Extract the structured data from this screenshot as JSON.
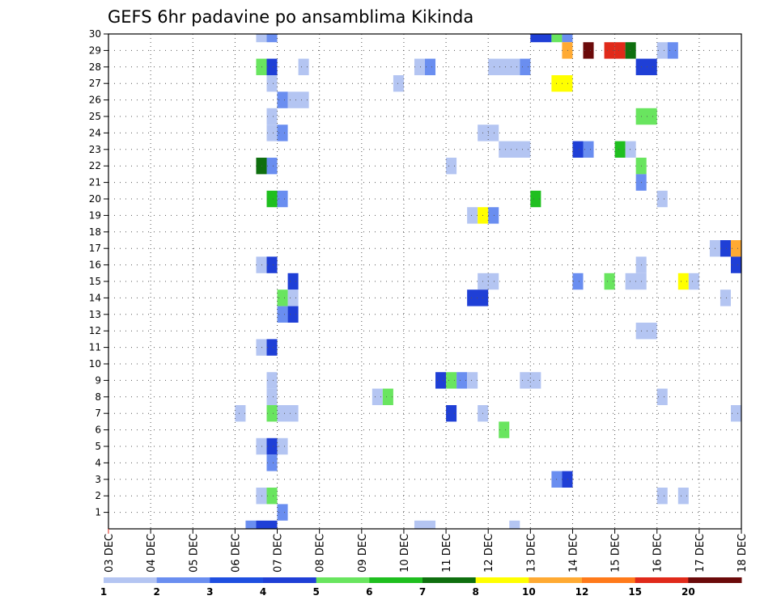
{
  "chart_data": {
    "type": "heatmap",
    "title": "GEFS 6hr padavine po ansamblima Kikinda",
    "x_tick_labels": [
      "03 DEC",
      "04 DEC",
      "05 DEC",
      "06 DEC",
      "07 DEC",
      "08 DEC",
      "09 DEC",
      "10 DEC",
      "11 DEC",
      "12 DEC",
      "13 DEC",
      "14 DEC",
      "15 DEC",
      "16 DEC",
      "17 DEC",
      "18 DEC"
    ],
    "y_tick_labels": [
      "1",
      "2",
      "3",
      "4",
      "5",
      "6",
      "7",
      "8",
      "9",
      "10",
      "11",
      "12",
      "13",
      "14",
      "15",
      "16",
      "17",
      "18",
      "19",
      "20",
      "21",
      "22",
      "23",
      "24",
      "25",
      "26",
      "27",
      "28",
      "29",
      "30"
    ],
    "x_unit": "day",
    "x_range": [
      0,
      15
    ],
    "y_range": [
      0,
      30
    ],
    "time_step_hours": 6,
    "grid": true,
    "legend": {
      "placement": "bottom",
      "levels": [
        "1",
        "2",
        "3",
        "4",
        "5",
        "6",
        "7",
        "8",
        "10",
        "12",
        "15",
        "20"
      ],
      "colors": [
        "#b4c5f2",
        "#6a8ef0",
        "#1f4fe0",
        "#1f3fd6",
        "#69e55f",
        "#1fbf1f",
        "#0f6f0f",
        "#ffff00",
        "#ffaa33",
        "#ff7a1a",
        "#e02a1a",
        "#6b0a0a"
      ]
    },
    "cell_colors": {
      "c1": "#b4c5f2",
      "c2": "#6a8ef0",
      "c3": "#1f4fe0",
      "c4": "#1f3fd6",
      "c5": "#69e55f",
      "c6": "#1fbf1f",
      "c7": "#0f6f0f",
      "c8": "#ffff00",
      "c10": "#ffaa33",
      "c15": "#e02a1a",
      "c20": "#6b0a0a"
    },
    "cells": [
      {
        "member": 30,
        "start_day": 3.5,
        "days": 0.25,
        "cls": "c1"
      },
      {
        "member": 30,
        "start_day": 3.75,
        "days": 0.25,
        "cls": "c2"
      },
      {
        "member": 30,
        "start_day": 10,
        "days": 0.5,
        "cls": "c4"
      },
      {
        "member": 30,
        "start_day": 10.5,
        "days": 0.25,
        "cls": "c5"
      },
      {
        "member": 30,
        "start_day": 10.75,
        "days": 0.25,
        "cls": "c2"
      },
      {
        "member": 29,
        "start_day": 10.75,
        "days": 0.25,
        "cls": "c10"
      },
      {
        "member": 29,
        "start_day": 11.25,
        "days": 0.25,
        "cls": "c20"
      },
      {
        "member": 29,
        "start_day": 11.75,
        "days": 0.25,
        "cls": "c15"
      },
      {
        "member": 29,
        "start_day": 12,
        "days": 0.25,
        "cls": "c15"
      },
      {
        "member": 29,
        "start_day": 12.25,
        "days": 0.25,
        "cls": "c7"
      },
      {
        "member": 29,
        "start_day": 13,
        "days": 0.25,
        "cls": "c1"
      },
      {
        "member": 29,
        "start_day": 13.25,
        "days": 0.25,
        "cls": "c2"
      },
      {
        "member": 28,
        "start_day": 3.5,
        "days": 0.25,
        "cls": "c5"
      },
      {
        "member": 28,
        "start_day": 3.75,
        "days": 0.25,
        "cls": "c4"
      },
      {
        "member": 28,
        "start_day": 4.5,
        "days": 0.25,
        "cls": "c1"
      },
      {
        "member": 28,
        "start_day": 7.25,
        "days": 0.25,
        "cls": "c1"
      },
      {
        "member": 28,
        "start_day": 7.5,
        "days": 0.25,
        "cls": "c2"
      },
      {
        "member": 28,
        "start_day": 9,
        "days": 0.75,
        "cls": "c1"
      },
      {
        "member": 28,
        "start_day": 9.75,
        "days": 0.25,
        "cls": "c2"
      },
      {
        "member": 28,
        "start_day": 12.5,
        "days": 0.5,
        "cls": "c4"
      },
      {
        "member": 27,
        "start_day": 3.75,
        "days": 0.25,
        "cls": "c1"
      },
      {
        "member": 27,
        "start_day": 6.75,
        "days": 0.25,
        "cls": "c1"
      },
      {
        "member": 27,
        "start_day": 10.5,
        "days": 0.5,
        "cls": "c8"
      },
      {
        "member": 26,
        "start_day": 4,
        "days": 0.25,
        "cls": "c2"
      },
      {
        "member": 26,
        "start_day": 4.25,
        "days": 0.5,
        "cls": "c1"
      },
      {
        "member": 25,
        "start_day": 3.75,
        "days": 0.25,
        "cls": "c1"
      },
      {
        "member": 25,
        "start_day": 12.5,
        "days": 0.5,
        "cls": "c5"
      },
      {
        "member": 24,
        "start_day": 3.75,
        "days": 0.25,
        "cls": "c1"
      },
      {
        "member": 24,
        "start_day": 4,
        "days": 0.25,
        "cls": "c2"
      },
      {
        "member": 24,
        "start_day": 8.75,
        "days": 0.5,
        "cls": "c1"
      },
      {
        "member": 23,
        "start_day": 9.25,
        "days": 0.75,
        "cls": "c1"
      },
      {
        "member": 23,
        "start_day": 11,
        "days": 0.25,
        "cls": "c4"
      },
      {
        "member": 23,
        "start_day": 11.25,
        "days": 0.25,
        "cls": "c2"
      },
      {
        "member": 23,
        "start_day": 12,
        "days": 0.25,
        "cls": "c6"
      },
      {
        "member": 23,
        "start_day": 12.25,
        "days": 0.25,
        "cls": "c1"
      },
      {
        "member": 22,
        "start_day": 3.5,
        "days": 0.25,
        "cls": "c7"
      },
      {
        "member": 22,
        "start_day": 3.75,
        "days": 0.25,
        "cls": "c2"
      },
      {
        "member": 22,
        "start_day": 8,
        "days": 0.25,
        "cls": "c1"
      },
      {
        "member": 22,
        "start_day": 12.5,
        "days": 0.25,
        "cls": "c5"
      },
      {
        "member": 21,
        "start_day": 12.5,
        "days": 0.25,
        "cls": "c2"
      },
      {
        "member": 20,
        "start_day": 3.75,
        "days": 0.25,
        "cls": "c6"
      },
      {
        "member": 20,
        "start_day": 4,
        "days": 0.25,
        "cls": "c2"
      },
      {
        "member": 20,
        "start_day": 10,
        "days": 0.25,
        "cls": "c6"
      },
      {
        "member": 20,
        "start_day": 13,
        "days": 0.25,
        "cls": "c1"
      },
      {
        "member": 19,
        "start_day": 8.5,
        "days": 0.25,
        "cls": "c1"
      },
      {
        "member": 19,
        "start_day": 8.75,
        "days": 0.25,
        "cls": "c8"
      },
      {
        "member": 19,
        "start_day": 9,
        "days": 0.25,
        "cls": "c2"
      },
      {
        "member": 17,
        "start_day": 14.25,
        "days": 0.25,
        "cls": "c1"
      },
      {
        "member": 17,
        "start_day": 14.5,
        "days": 0.25,
        "cls": "c4"
      },
      {
        "member": 17,
        "start_day": 14.75,
        "days": 0.25,
        "cls": "c10"
      },
      {
        "member": 16,
        "start_day": 3.5,
        "days": 0.25,
        "cls": "c1"
      },
      {
        "member": 16,
        "start_day": 3.75,
        "days": 0.25,
        "cls": "c4"
      },
      {
        "member": 16,
        "start_day": 12.5,
        "days": 0.25,
        "cls": "c1"
      },
      {
        "member": 16,
        "start_day": 14.75,
        "days": 0.25,
        "cls": "c4"
      },
      {
        "member": 15,
        "start_day": 4.25,
        "days": 0.25,
        "cls": "c4"
      },
      {
        "member": 15,
        "start_day": 8.75,
        "days": 0.5,
        "cls": "c1"
      },
      {
        "member": 15,
        "start_day": 11,
        "days": 0.25,
        "cls": "c2"
      },
      {
        "member": 15,
        "start_day": 11.75,
        "days": 0.25,
        "cls": "c5"
      },
      {
        "member": 15,
        "start_day": 12.25,
        "days": 0.5,
        "cls": "c1"
      },
      {
        "member": 15,
        "start_day": 13.5,
        "days": 0.25,
        "cls": "c8"
      },
      {
        "member": 15,
        "start_day": 13.75,
        "days": 0.25,
        "cls": "c1"
      },
      {
        "member": 14,
        "start_day": 4,
        "days": 0.25,
        "cls": "c5"
      },
      {
        "member": 14,
        "start_day": 4.25,
        "days": 0.25,
        "cls": "c1"
      },
      {
        "member": 14,
        "start_day": 8.5,
        "days": 0.5,
        "cls": "c4"
      },
      {
        "member": 14,
        "start_day": 14.5,
        "days": 0.25,
        "cls": "c1"
      },
      {
        "member": 13,
        "start_day": 4,
        "days": 0.25,
        "cls": "c2"
      },
      {
        "member": 13,
        "start_day": 4.25,
        "days": 0.25,
        "cls": "c4"
      },
      {
        "member": 12,
        "start_day": 12.5,
        "days": 0.5,
        "cls": "c1"
      },
      {
        "member": 11,
        "start_day": 3.5,
        "days": 0.25,
        "cls": "c1"
      },
      {
        "member": 11,
        "start_day": 3.75,
        "days": 0.25,
        "cls": "c4"
      },
      {
        "member": 9,
        "start_day": 3.75,
        "days": 0.25,
        "cls": "c1"
      },
      {
        "member": 9,
        "start_day": 7.75,
        "days": 0.25,
        "cls": "c4"
      },
      {
        "member": 9,
        "start_day": 8,
        "days": 0.25,
        "cls": "c5"
      },
      {
        "member": 9,
        "start_day": 8.25,
        "days": 0.25,
        "cls": "c2"
      },
      {
        "member": 9,
        "start_day": 8.5,
        "days": 0.25,
        "cls": "c1"
      },
      {
        "member": 9,
        "start_day": 9.75,
        "days": 0.5,
        "cls": "c1"
      },
      {
        "member": 8,
        "start_day": 3.75,
        "days": 0.25,
        "cls": "c1"
      },
      {
        "member": 8,
        "start_day": 6.25,
        "days": 0.25,
        "cls": "c1"
      },
      {
        "member": 8,
        "start_day": 6.5,
        "days": 0.25,
        "cls": "c5"
      },
      {
        "member": 8,
        "start_day": 13,
        "days": 0.25,
        "cls": "c1"
      },
      {
        "member": 7,
        "start_day": 3,
        "days": 0.25,
        "cls": "c1"
      },
      {
        "member": 7,
        "start_day": 3.75,
        "days": 0.25,
        "cls": "c5"
      },
      {
        "member": 7,
        "start_day": 4,
        "days": 0.5,
        "cls": "c1"
      },
      {
        "member": 7,
        "start_day": 8,
        "days": 0.25,
        "cls": "c4"
      },
      {
        "member": 7,
        "start_day": 8.75,
        "days": 0.25,
        "cls": "c1"
      },
      {
        "member": 7,
        "start_day": 14.75,
        "days": 0.25,
        "cls": "c1"
      },
      {
        "member": 6,
        "start_day": 9.25,
        "days": 0.25,
        "cls": "c5"
      },
      {
        "member": 5,
        "start_day": 3.5,
        "days": 0.25,
        "cls": "c1"
      },
      {
        "member": 5,
        "start_day": 3.75,
        "days": 0.25,
        "cls": "c4"
      },
      {
        "member": 5,
        "start_day": 4,
        "days": 0.25,
        "cls": "c1"
      },
      {
        "member": 4,
        "start_day": 3.75,
        "days": 0.25,
        "cls": "c2"
      },
      {
        "member": 3,
        "start_day": 10.5,
        "days": 0.25,
        "cls": "c2"
      },
      {
        "member": 3,
        "start_day": 10.75,
        "days": 0.25,
        "cls": "c4"
      },
      {
        "member": 2,
        "start_day": 3.5,
        "days": 0.25,
        "cls": "c1"
      },
      {
        "member": 2,
        "start_day": 3.75,
        "days": 0.25,
        "cls": "c5"
      },
      {
        "member": 2,
        "start_day": 13,
        "days": 0.25,
        "cls": "c1"
      },
      {
        "member": 2,
        "start_day": 13.5,
        "days": 0.25,
        "cls": "c1"
      },
      {
        "member": 1,
        "start_day": 4,
        "days": 0.25,
        "cls": "c2"
      },
      {
        "member": 0,
        "start_day": 3.25,
        "days": 0.25,
        "cls": "c2"
      },
      {
        "member": 0,
        "start_day": 3.5,
        "days": 0.5,
        "cls": "c4"
      },
      {
        "member": 0,
        "start_day": 7.25,
        "days": 0.5,
        "cls": "c1"
      },
      {
        "member": 0,
        "start_day": 9.5,
        "days": 0.25,
        "cls": "c1"
      }
    ]
  }
}
